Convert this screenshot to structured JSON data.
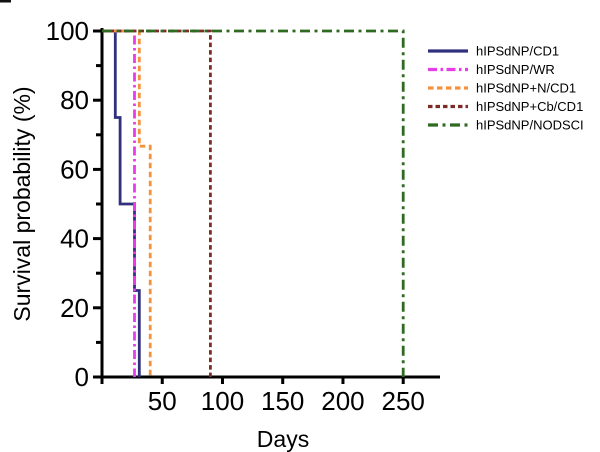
{
  "figure": {
    "background": "#ffffff",
    "axis_color": "#000000"
  },
  "chart_data": {
    "type": "line",
    "subtype": "kaplan-meier-step-survival",
    "title": "",
    "xlabel": "Days",
    "ylabel": "Survival probability (%)",
    "xlim": [
      0,
      280
    ],
    "ylim": [
      0,
      100
    ],
    "xticks": [
      50,
      100,
      150,
      200,
      250
    ],
    "yticks": [
      0,
      20,
      40,
      60,
      80,
      100
    ],
    "yticks_minor": [
      10,
      30,
      50,
      70,
      90
    ],
    "grid": false,
    "legend_position": "outside-upper-right",
    "series": [
      {
        "name": "hIPSdNP/CD1",
        "color": "#30307f",
        "linestyle": "solid",
        "dash": [],
        "points": [
          [
            0,
            100
          ],
          [
            11,
            100
          ],
          [
            11,
            75
          ],
          [
            15,
            75
          ],
          [
            15,
            50
          ],
          [
            27,
            50
          ],
          [
            27,
            25
          ],
          [
            31,
            25
          ],
          [
            31,
            0
          ]
        ]
      },
      {
        "name": "hIPSdNP/WR",
        "color": "#e83ce8",
        "linestyle": "dashdot",
        "dash": [
          9,
          3.5,
          2.5,
          3.5
        ],
        "points": [
          [
            0,
            100
          ],
          [
            27,
            100
          ],
          [
            27,
            0
          ]
        ]
      },
      {
        "name": "hIPSdNP+N/CD1",
        "color": "#f5923e",
        "linestyle": "dashed",
        "dash": [
          5.5,
          3.5
        ],
        "points": [
          [
            0,
            100
          ],
          [
            31,
            100
          ],
          [
            31,
            66.7
          ],
          [
            40,
            66.7
          ],
          [
            40,
            0
          ]
        ]
      },
      {
        "name": "hIPSdNP+Cb/CD1",
        "color": "#7e2b28",
        "linestyle": "dashed",
        "dash": [
          4.5,
          3
        ],
        "points": [
          [
            0,
            100
          ],
          [
            90,
            100
          ],
          [
            90,
            0
          ]
        ]
      },
      {
        "name": "hIPSdNP/NODSCI",
        "color": "#2e6b20",
        "linestyle": "dashdot",
        "dash": [
          10,
          4.5,
          3,
          4.5
        ],
        "points": [
          [
            0,
            100
          ],
          [
            250,
            100
          ],
          [
            250,
            0
          ]
        ]
      }
    ]
  }
}
